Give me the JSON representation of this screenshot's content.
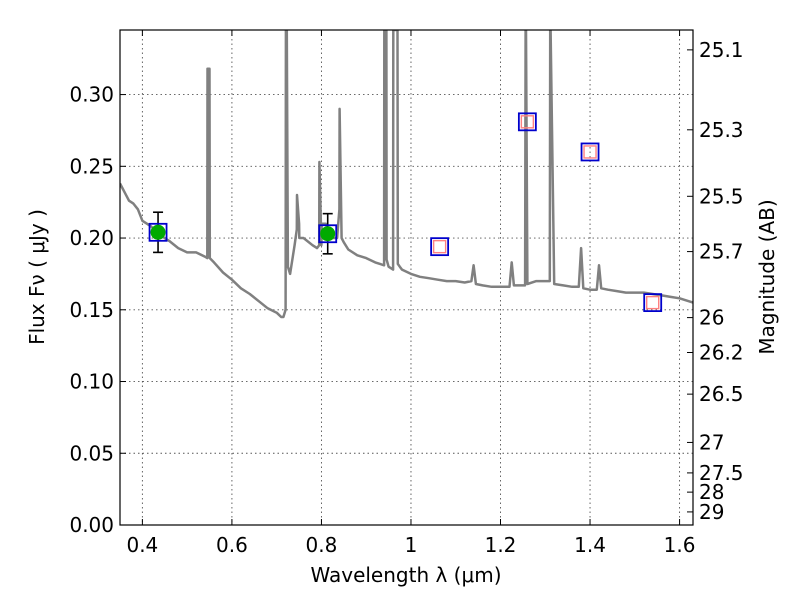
{
  "chart_data": {
    "type": "scatter",
    "xlabel": "Wavelength  λ (μm)",
    "ylabel": "Flux  Fν  ( μJy )",
    "ylabel_right": "Magnitude (AB)",
    "xlim": [
      0.35,
      1.63
    ],
    "ylim": [
      0.0,
      0.345
    ],
    "grid": true,
    "x_ticks": [
      0.4,
      0.6,
      0.8,
      1.0,
      1.2,
      1.4,
      1.6
    ],
    "x_tick_labels": [
      "0.4",
      "0.6",
      "0.8",
      "1",
      "1.2",
      "1.4",
      "1.6"
    ],
    "y_ticks": [
      0.0,
      0.05,
      0.1,
      0.15,
      0.2,
      0.25,
      0.3
    ],
    "y_tick_labels": [
      "0.00",
      "0.05",
      "0.10",
      "0.15",
      "0.20",
      "0.25",
      "0.30"
    ],
    "right_ticks": [
      {
        "label": "25.1",
        "mag": 25.1
      },
      {
        "label": "25.3",
        "mag": 25.3
      },
      {
        "label": "25.5",
        "mag": 25.5
      },
      {
        "label": "25.7",
        "mag": 25.7
      },
      {
        "label": "26",
        "mag": 26.0
      },
      {
        "label": "26.2",
        "mag": 26.2
      },
      {
        "label": "26.5",
        "mag": 26.5
      },
      {
        "label": "27",
        "mag": 27.0
      },
      {
        "label": "27.5",
        "mag": 27.5
      },
      {
        "label": "28",
        "mag": 28.0
      },
      {
        "label": "29",
        "mag": 29.0
      }
    ],
    "series": [
      {
        "style": "model-spectrum",
        "color": "#808080",
        "x": [
          0.35,
          0.36,
          0.37,
          0.38,
          0.39,
          0.4,
          0.41,
          0.42,
          0.43,
          0.44,
          0.46,
          0.48,
          0.5,
          0.52,
          0.54,
          0.545,
          0.5455,
          0.55,
          0.5505,
          0.56,
          0.58,
          0.6,
          0.62,
          0.64,
          0.66,
          0.68,
          0.7,
          0.71,
          0.715,
          0.72,
          0.7205,
          0.7225,
          0.725,
          0.73,
          0.74,
          0.745,
          0.7455,
          0.75,
          0.7505,
          0.76,
          0.78,
          0.79,
          0.795,
          0.7955,
          0.8,
          0.8005,
          0.81,
          0.82,
          0.835,
          0.84,
          0.8405,
          0.845,
          0.85,
          0.86,
          0.88,
          0.9,
          0.92,
          0.94,
          0.9405,
          0.945,
          0.9455,
          0.95,
          0.96,
          0.9605,
          0.97,
          0.9705,
          0.975,
          0.98,
          1.0,
          1.02,
          1.04,
          1.06,
          1.08,
          1.1,
          1.12,
          1.135,
          1.14,
          1.145,
          1.16,
          1.18,
          1.2,
          1.22,
          1.225,
          1.23,
          1.24,
          1.255,
          1.256,
          1.257,
          1.26,
          1.28,
          1.3,
          1.31,
          1.311,
          1.312,
          1.32,
          1.34,
          1.36,
          1.375,
          1.38,
          1.385,
          1.4,
          1.415,
          1.42,
          1.425,
          1.44,
          1.46,
          1.48,
          1.5,
          1.52,
          1.54,
          1.56,
          1.58,
          1.6,
          1.63
        ],
        "y": [
          0.238,
          0.232,
          0.226,
          0.224,
          0.22,
          0.212,
          0.21,
          0.208,
          0.205,
          0.202,
          0.198,
          0.193,
          0.19,
          0.19,
          0.187,
          0.186,
          0.318,
          0.318,
          0.186,
          0.183,
          0.176,
          0.171,
          0.165,
          0.161,
          0.156,
          0.151,
          0.148,
          0.145,
          0.145,
          0.15,
          0.345,
          0.345,
          0.18,
          0.175,
          0.195,
          0.206,
          0.23,
          0.21,
          0.2,
          0.2,
          0.195,
          0.193,
          0.195,
          0.253,
          0.195,
          0.21,
          0.21,
          0.2,
          0.2,
          0.22,
          0.29,
          0.2,
          0.197,
          0.192,
          0.188,
          0.186,
          0.183,
          0.181,
          0.345,
          0.345,
          0.185,
          0.18,
          0.178,
          0.345,
          0.345,
          0.182,
          0.18,
          0.178,
          0.175,
          0.173,
          0.172,
          0.171,
          0.17,
          0.17,
          0.169,
          0.17,
          0.181,
          0.168,
          0.167,
          0.166,
          0.166,
          0.166,
          0.183,
          0.167,
          0.167,
          0.167,
          0.345,
          0.345,
          0.168,
          0.17,
          0.17,
          0.17,
          0.345,
          0.345,
          0.168,
          0.167,
          0.166,
          0.166,
          0.193,
          0.165,
          0.164,
          0.164,
          0.181,
          0.165,
          0.164,
          0.163,
          0.162,
          0.162,
          0.162,
          0.161,
          0.16,
          0.159,
          0.158,
          0.155
        ]
      },
      {
        "style": "model-photometry",
        "marker": "square",
        "color": "#0000cc",
        "x": [
          0.435,
          0.814,
          1.064,
          1.26,
          1.4,
          1.54
        ],
        "y": [
          0.204,
          0.203,
          0.194,
          0.281,
          0.26,
          0.155
        ]
      },
      {
        "style": "observed-photometry",
        "marker": "circle",
        "color": "#00aa00",
        "x": [
          0.435,
          0.814
        ],
        "y": [
          0.204,
          0.203
        ],
        "yerr": [
          0.014,
          0.014
        ]
      },
      {
        "style": "upper-limits",
        "marker": "square",
        "color": "#ff8080",
        "x": [
          1.064,
          1.26,
          1.4,
          1.54
        ],
        "y": [
          0.194,
          0.281,
          0.26,
          0.155
        ]
      }
    ]
  }
}
